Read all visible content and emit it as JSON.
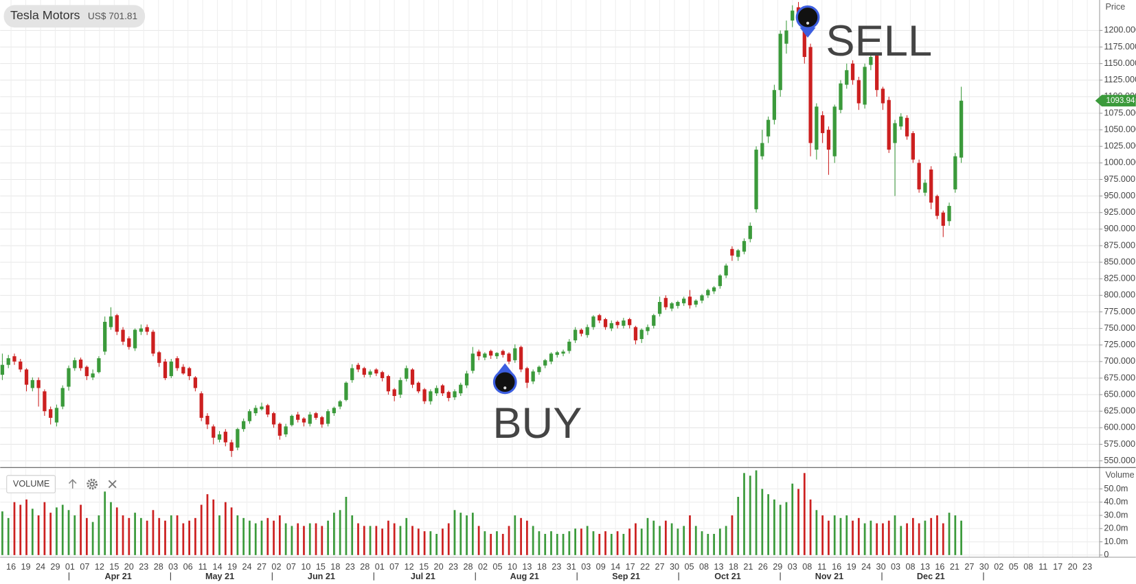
{
  "chart_data": {
    "type": "candlestick",
    "title": "Tesla Motors",
    "subtitle": "US$ 701.81",
    "price_axis_label": "Price",
    "volume_axis_label": "Volume",
    "volume_label": "VOLUME",
    "up_color": "#3b9a3b",
    "down_color": "#cc2020",
    "grid": true,
    "last_price": 1093.94,
    "annotations": [
      {
        "text": "BUY",
        "color": "#1fae1f"
      },
      {
        "text": "SELL",
        "color": "#d81616"
      }
    ],
    "ylim": [
      540,
      1246
    ],
    "yticks": [
      {
        "value": 550,
        "label": "550.000"
      },
      {
        "value": 575,
        "label": "575.000"
      },
      {
        "value": 600,
        "label": "600.000"
      },
      {
        "value": 625,
        "label": "625.000"
      },
      {
        "value": 650,
        "label": "650.000"
      },
      {
        "value": 675,
        "label": "675.000"
      },
      {
        "value": 700,
        "label": "700.000"
      },
      {
        "value": 725,
        "label": "725.000"
      },
      {
        "value": 750,
        "label": "750.000"
      },
      {
        "value": 775,
        "label": "775.000"
      },
      {
        "value": 800,
        "label": "800.000"
      },
      {
        "value": 825,
        "label": "825.000"
      },
      {
        "value": 850,
        "label": "850.000"
      },
      {
        "value": 875,
        "label": "875.000"
      },
      {
        "value": 900,
        "label": "900.000"
      },
      {
        "value": 925,
        "label": "925.000"
      },
      {
        "value": 950,
        "label": "950.000"
      },
      {
        "value": 975,
        "label": "975.000"
      },
      {
        "value": 1000,
        "label": "1000.000"
      },
      {
        "value": 1025,
        "label": "1025.000"
      },
      {
        "value": 1050,
        "label": "1050.000"
      },
      {
        "value": 1075,
        "label": "1075.000"
      },
      {
        "value": 1100,
        "label": "1100.000"
      },
      {
        "value": 1125,
        "label": "1125.000"
      },
      {
        "value": 1150,
        "label": "1150.000"
      },
      {
        "value": 1175,
        "label": "1175.000"
      },
      {
        "value": 1200,
        "label": "1200.000"
      }
    ],
    "volume_ylim": [
      0,
      64
    ],
    "volume_yticks": [
      0,
      {
        "value": 10,
        "label": "10.0m"
      },
      {
        "value": 20,
        "label": "20.0m"
      },
      {
        "value": 30,
        "label": "30.0m"
      },
      {
        "value": 40,
        "label": "40.0m"
      },
      {
        "value": 50,
        "label": "50.0m"
      }
    ],
    "x_axis_days": [
      "16",
      "19",
      "24",
      "29",
      "01",
      "07",
      "12",
      "15",
      "20",
      "23",
      "28",
      "03",
      "06",
      "11",
      "14",
      "19",
      "24",
      "27",
      "02",
      "07",
      "10",
      "15",
      "18",
      "23",
      "28",
      "01",
      "07",
      "12",
      "15",
      "20",
      "23",
      "28",
      "02",
      "05",
      "10",
      "13",
      "18",
      "23",
      "31",
      "03",
      "09",
      "14",
      "17",
      "22",
      "27",
      "30",
      "05",
      "08",
      "13",
      "18",
      "21",
      "26",
      "29",
      "03",
      "08",
      "11",
      "16",
      "19",
      "24",
      "30",
      "03",
      "08",
      "13",
      "16",
      "21",
      "27",
      "30",
      "02",
      "05",
      "08",
      "11",
      "17",
      "20",
      "23"
    ],
    "x_axis_months": [
      "Apr 21",
      "May 21",
      "Jun 21",
      "Jul 21",
      "Aug 21",
      "Sep 21",
      "Oct 21",
      "Nov 21",
      "Dec 21"
    ],
    "open": [
      680,
      695,
      708,
      700,
      688,
      660,
      672,
      655,
      628,
      608,
      632,
      662,
      690,
      703,
      692,
      676,
      684,
      715,
      752,
      770,
      748,
      735,
      720,
      745,
      752,
      745,
      714,
      700,
      678,
      705,
      692,
      690,
      676,
      652,
      618,
      602,
      582,
      594,
      578,
      570,
      598,
      610,
      622,
      628,
      634,
      622,
      606,
      590,
      604,
      620,
      614,
      606,
      622,
      616,
      606,
      622,
      632,
      642,
      672,
      695,
      690,
      680,
      688,
      684,
      678,
      658,
      650,
      674,
      688,
      668,
      658,
      640,
      652,
      664,
      654,
      646,
      652,
      664,
      686,
      715,
      706,
      716,
      708,
      716,
      712,
      702,
      722,
      690,
      670,
      684,
      694,
      700,
      710,
      712,
      716,
      732,
      748,
      740,
      752,
      770,
      764,
      750,
      760,
      754,
      764,
      752,
      734,
      746,
      754,
      772,
      796,
      780,
      784,
      788,
      798,
      786,
      792,
      800,
      806,
      814,
      830,
      870,
      858,
      866,
      885,
      930,
      1010,
      1040,
      1065,
      1110,
      1180,
      1215,
      1235,
      1220,
      1175,
      1020,
      1072,
      1050,
      1010,
      1080,
      1118,
      1150,
      1125,
      1088,
      1148,
      1162,
      1112,
      1095,
      1030,
      1055,
      1068,
      1045,
      1000,
      955,
      990,
      950,
      925,
      912,
      960,
      1008
    ],
    "high": [
      712,
      710,
      712,
      704,
      690,
      676,
      676,
      658,
      632,
      635,
      664,
      694,
      706,
      706,
      694,
      688,
      708,
      768,
      782,
      772,
      752,
      738,
      750,
      756,
      756,
      748,
      716,
      704,
      704,
      708,
      696,
      692,
      678,
      655,
      622,
      605,
      595,
      598,
      582,
      600,
      614,
      628,
      634,
      638,
      636,
      624,
      608,
      606,
      620,
      624,
      616,
      624,
      624,
      618,
      628,
      632,
      642,
      670,
      696,
      698,
      692,
      688,
      690,
      686,
      680,
      660,
      676,
      694,
      690,
      670,
      660,
      658,
      664,
      666,
      656,
      658,
      668,
      686,
      722,
      718,
      714,
      718,
      714,
      718,
      714,
      726,
      724,
      692,
      688,
      694,
      704,
      714,
      716,
      718,
      734,
      752,
      750,
      756,
      770,
      772,
      766,
      762,
      762,
      766,
      766,
      754,
      750,
      756,
      772,
      798,
      800,
      790,
      792,
      798,
      808,
      794,
      802,
      810,
      814,
      832,
      848,
      874,
      870,
      886,
      910,
      1025,
      1050,
      1070,
      1118,
      1200,
      1215,
      1238,
      1243,
      1225,
      1180,
      1090,
      1078,
      1055,
      1088,
      1125,
      1150,
      1155,
      1130,
      1150,
      1165,
      1166,
      1115,
      1100,
      1065,
      1075,
      1072,
      1048,
      1005,
      975,
      995,
      952,
      928,
      940,
      1015,
      1115
    ],
    "low": [
      672,
      690,
      695,
      684,
      655,
      655,
      632,
      618,
      605,
      602,
      628,
      656,
      686,
      686,
      672,
      672,
      682,
      710,
      748,
      740,
      725,
      718,
      716,
      740,
      740,
      708,
      692,
      672,
      675,
      686,
      680,
      672,
      655,
      610,
      598,
      575,
      578,
      572,
      556,
      566,
      594,
      606,
      618,
      626,
      616,
      600,
      582,
      586,
      602,
      608,
      602,
      602,
      612,
      600,
      602,
      618,
      628,
      640,
      668,
      684,
      676,
      676,
      678,
      670,
      650,
      640,
      645,
      670,
      660,
      652,
      636,
      635,
      648,
      648,
      640,
      642,
      648,
      660,
      682,
      702,
      702,
      704,
      704,
      706,
      696,
      698,
      684,
      660,
      666,
      680,
      690,
      696,
      706,
      708,
      712,
      728,
      738,
      736,
      748,
      758,
      748,
      746,
      750,
      750,
      750,
      726,
      728,
      740,
      750,
      768,
      778,
      776,
      780,
      784,
      780,
      782,
      788,
      796,
      802,
      810,
      826,
      852,
      852,
      862,
      880,
      925,
      1005,
      1030,
      1058,
      1100,
      1165,
      1205,
      1215,
      1150,
      1010,
      1005,
      1030,
      982,
      1000,
      1075,
      1112,
      1118,
      1080,
      1082,
      1140,
      1100,
      1080,
      1015,
      950,
      1050,
      1035,
      1000,
      955,
      950,
      930,
      915,
      888,
      905,
      955,
      1000
    ],
    "close": [
      695,
      705,
      700,
      688,
      665,
      672,
      660,
      625,
      615,
      630,
      660,
      690,
      702,
      690,
      678,
      682,
      705,
      760,
      768,
      745,
      730,
      722,
      748,
      750,
      745,
      712,
      698,
      675,
      700,
      690,
      682,
      678,
      660,
      615,
      605,
      585,
      590,
      578,
      565,
      598,
      610,
      625,
      630,
      632,
      620,
      605,
      588,
      602,
      618,
      612,
      608,
      620,
      615,
      605,
      625,
      630,
      640,
      668,
      690,
      688,
      680,
      685,
      682,
      675,
      655,
      648,
      672,
      690,
      665,
      655,
      640,
      655,
      660,
      652,
      645,
      655,
      665,
      682,
      712,
      708,
      712,
      709,
      713,
      710,
      700,
      720,
      688,
      668,
      685,
      692,
      702,
      712,
      714,
      715,
      730,
      748,
      742,
      752,
      768,
      762,
      752,
      758,
      755,
      762,
      755,
      732,
      748,
      752,
      770,
      790,
      782,
      788,
      790,
      795,
      785,
      792,
      800,
      808,
      812,
      830,
      845,
      860,
      868,
      882,
      905,
      1020,
      1030,
      1065,
      1110,
      1195,
      1200,
      1230,
      1225,
      1160,
      1030,
      1085,
      1045,
      1020,
      1085,
      1120,
      1140,
      1125,
      1090,
      1145,
      1160,
      1110,
      1090,
      1020,
      1060,
      1070,
      1040,
      1005,
      960,
      970,
      940,
      920,
      905,
      935,
      1010,
      1093.94
    ],
    "volume": [
      33,
      28,
      40,
      38,
      42,
      35,
      30,
      40,
      32,
      36,
      38,
      34,
      30,
      38,
      28,
      25,
      30,
      48,
      40,
      36,
      30,
      28,
      32,
      28,
      26,
      34,
      28,
      26,
      30,
      30,
      24,
      26,
      28,
      38,
      46,
      42,
      30,
      40,
      36,
      30,
      28,
      26,
      24,
      26,
      28,
      26,
      30,
      24,
      22,
      24,
      22,
      24,
      24,
      22,
      26,
      32,
      34,
      44,
      30,
      24,
      22,
      22,
      22,
      20,
      26,
      24,
      22,
      28,
      22,
      20,
      18,
      18,
      16,
      20,
      24,
      34,
      32,
      30,
      32,
      22,
      18,
      16,
      18,
      16,
      22,
      30,
      28,
      26,
      22,
      18,
      16,
      18,
      16,
      16,
      18,
      20,
      20,
      22,
      18,
      16,
      18,
      16,
      18,
      16,
      20,
      24,
      20,
      28,
      26,
      22,
      26,
      24,
      20,
      22,
      30,
      22,
      18,
      16,
      16,
      20,
      22,
      30,
      44,
      62,
      60,
      64,
      50,
      46,
      42,
      38,
      40,
      54,
      50,
      62,
      42,
      34,
      30,
      26,
      30,
      28,
      30,
      26,
      28,
      24,
      26,
      24,
      24,
      26,
      30,
      22,
      24,
      28,
      24,
      26,
      28,
      30,
      24,
      32,
      30,
      26
    ]
  }
}
